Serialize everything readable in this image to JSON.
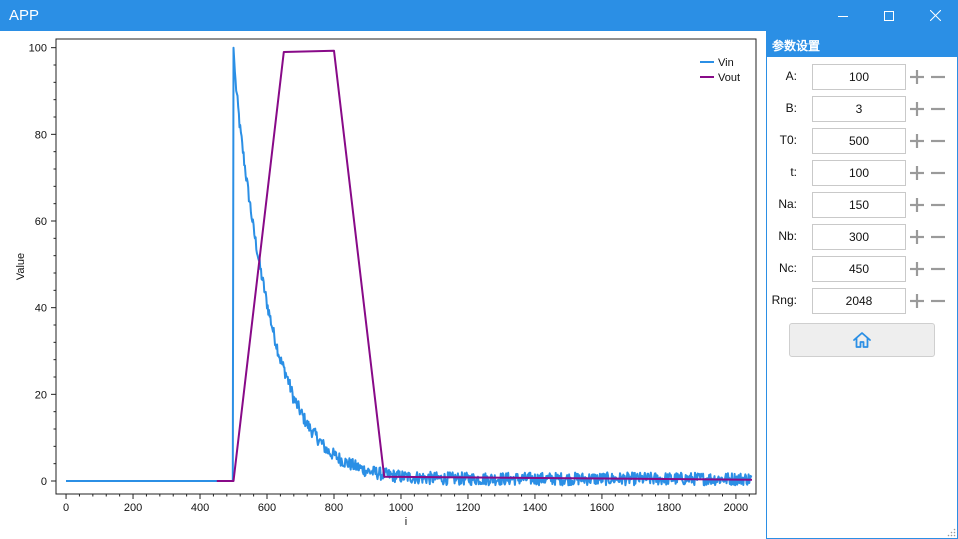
{
  "window": {
    "title": "APP",
    "accent_color": "#2b8fe5",
    "icons": [
      "minimize-icon",
      "maximize-icon",
      "close-icon"
    ]
  },
  "panel": {
    "title": "参数设置",
    "params": [
      {
        "label": "A:",
        "value": "100"
      },
      {
        "label": "B:",
        "value": "3"
      },
      {
        "label": "T0:",
        "value": "500"
      },
      {
        "label": "t:",
        "value": "100"
      },
      {
        "label": "Na:",
        "value": "150"
      },
      {
        "label": "Nb:",
        "value": "300"
      },
      {
        "label": "Nc:",
        "value": "450"
      },
      {
        "label": "Rng:",
        "value": "2048"
      }
    ],
    "home_icon": "home-icon"
  },
  "chart_data": {
    "type": "line",
    "xlabel": "i",
    "ylabel": "Value",
    "xlim": [
      -30,
      2060
    ],
    "ylim": [
      -3,
      102
    ],
    "xticks": [
      0,
      200,
      400,
      600,
      800,
      1000,
      1200,
      1400,
      1600,
      1800,
      2000
    ],
    "yticks": [
      0,
      20,
      40,
      60,
      80,
      100
    ],
    "legend_position": "top-right",
    "grid": false,
    "series": [
      {
        "name": "Vin",
        "color": "#2b8fe5",
        "x": [
          0,
          499,
          500,
          505,
          520,
          540,
          560,
          580,
          600,
          620,
          640,
          660,
          680,
          700,
          720,
          740,
          760,
          780,
          800,
          830,
          860,
          900,
          950,
          1000,
          1100,
          1200,
          1400,
          1600,
          1800,
          2048
        ],
        "y": [
          0,
          0,
          100,
          93,
          81,
          69,
          58,
          49,
          41,
          34,
          28,
          24,
          19,
          16,
          13,
          11,
          9,
          7,
          6,
          4.5,
          3.5,
          2.3,
          1.5,
          1,
          0.6,
          0.5,
          0.5,
          0.5,
          0.5,
          0.5
        ],
        "noise_amplitude": 1.5
      },
      {
        "name": "Vout",
        "color": "#880a88",
        "x": [
          450,
          500,
          650,
          800,
          950,
          2048
        ],
        "y": [
          0,
          0,
          99,
          99.3,
          1,
          0.3
        ]
      }
    ]
  }
}
